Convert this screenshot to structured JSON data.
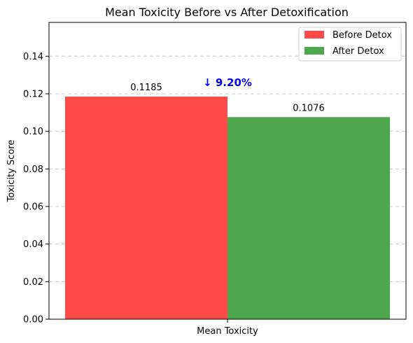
{
  "chart_data": {
    "type": "bar",
    "title": "Mean Toxicity Before vs After Detoxification",
    "xlabel": "",
    "ylabel": "Toxicity Score",
    "categories": [
      "Mean Toxicity"
    ],
    "series": [
      {
        "name": "Before Detox",
        "values": [
          0.1185
        ],
        "color": "#ff4a4a",
        "label": "0.1185"
      },
      {
        "name": "After Detox",
        "values": [
          0.1076
        ],
        "color": "#4ea64e",
        "label": "0.1076"
      }
    ],
    "ylim": [
      0,
      0.158
    ],
    "yticks": [
      "0.00",
      "0.02",
      "0.04",
      "0.06",
      "0.08",
      "0.10",
      "0.12",
      "0.14"
    ],
    "grid": "y-dashed",
    "legend": "top-right",
    "annotation": {
      "text": "↓ 9.20%",
      "color": "#0000ee"
    }
  }
}
